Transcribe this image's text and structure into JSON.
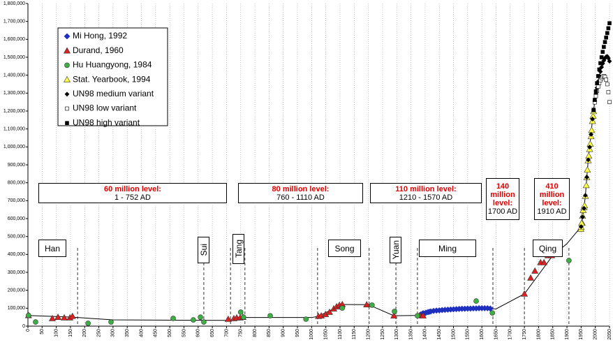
{
  "chart_data": {
    "type": "scatter",
    "xlim": [
      0,
      2050
    ],
    "xticks": [
      0,
      50,
      100,
      150,
      200,
      250,
      300,
      350,
      400,
      450,
      500,
      550,
      600,
      650,
      700,
      750,
      800,
      850,
      900,
      950,
      1000,
      1050,
      1100,
      1150,
      1200,
      1250,
      1300,
      1350,
      1400,
      1450,
      1500,
      1550,
      1600,
      1650,
      1700,
      1750,
      1800,
      1850,
      1900,
      1950,
      2000,
      2050
    ],
    "ylim": [
      0,
      1800000
    ],
    "yticks": [
      0,
      {
        "value": 100000,
        "label": "100,000"
      },
      {
        "value": 200000,
        "label": "200,000"
      },
      {
        "value": 300000,
        "label": "300,000"
      },
      {
        "value": 400000,
        "label": "400,000"
      },
      {
        "value": 500000,
        "label": "500,000"
      },
      {
        "value": 600000,
        "label": "600,000"
      },
      {
        "value": 700000,
        "label": "700,000"
      },
      {
        "value": 800000,
        "label": "800,000"
      },
      {
        "value": 900000,
        "label": "900,000"
      },
      {
        "value": 1000000,
        "label": "1,000,000"
      },
      {
        "value": 1100000,
        "label": "1,100,000"
      },
      {
        "value": 1200000,
        "label": "1,200,000"
      },
      {
        "value": 1300000,
        "label": "1,300,000"
      },
      {
        "value": 1400000,
        "label": "1,400,000"
      },
      {
        "value": 1500000,
        "label": "1,500,000"
      },
      {
        "value": 1600000,
        "label": "1,600,000"
      },
      {
        "value": 1700000,
        "label": "1,700,000"
      },
      {
        "value": 1800000,
        "label": "1,800,000"
      }
    ],
    "xgrid": true,
    "trend": {
      "color": "#000000",
      "x": [
        2,
        157,
        300,
        706,
        760,
        1000,
        1024,
        1108,
        1200,
        1290,
        1381,
        1450,
        1630,
        1650,
        1750,
        1850,
        1900,
        1950
      ],
      "values": [
        59600,
        50000,
        35000,
        32000,
        48000,
        48000,
        55000,
        121000,
        120000,
        58000,
        60000,
        88000,
        98000,
        96000,
        180000,
        394000,
        460000,
        554760
      ]
    },
    "series": [
      {
        "name": "Mi Hong, 1992",
        "color": "#1f2fbf",
        "marker": "diamond",
        "x": [
          1381,
          1385,
          1390,
          1393,
          1398,
          1403,
          1410,
          1415,
          1420,
          1430,
          1440,
          1450,
          1460,
          1470,
          1480,
          1490,
          1500,
          1510,
          1520,
          1530,
          1540,
          1550,
          1560,
          1570,
          1580,
          1590,
          1600,
          1610,
          1620,
          1630
        ],
        "values": [
          60000,
          65000,
          68000,
          72000,
          70000,
          75000,
          78000,
          80000,
          82000,
          85000,
          87000,
          88000,
          90000,
          91000,
          92000,
          93000,
          94000,
          95000,
          96000,
          97000,
          97000,
          98000,
          98000,
          99000,
          99000,
          100000,
          100000,
          100000,
          100000,
          98000
        ]
      },
      {
        "name": "Durand, 1960",
        "color": "#e02020",
        "marker": "triangle",
        "x": [
          2,
          86,
          106,
          128,
          148,
          157,
          706,
          726,
          736,
          748,
          758,
          1024,
          1034,
          1049,
          1063,
          1078,
          1088,
          1098,
          1108,
          1194,
          1290,
          1381,
          1393,
          1750,
          1772,
          1787,
          1807,
          1819,
          1833,
          1846,
          1953
        ],
        "values": [
          59600,
          43000,
          50000,
          47000,
          47000,
          55000,
          39000,
          43000,
          47000,
          47000,
          50000,
          55000,
          58000,
          66000,
          78000,
          97000,
          109000,
          117000,
          121000,
          120000,
          58000,
          60000,
          58000,
          180000,
          269000,
          308000,
          355000,
          355000,
          394000,
          394000,
          577000
        ]
      },
      {
        "name": "Hu Huangyong, 1984",
        "color": "#3cb043",
        "marker": "circle",
        "x": [
          2,
          27,
          212,
          293,
          512,
          583,
          608,
          620,
          750,
          760,
          854,
          980,
          1108,
          1213,
          1292,
          1373,
          1580,
          1637,
          1907
        ],
        "values": [
          60000,
          23000,
          16000,
          23000,
          43000,
          35000,
          50000,
          23000,
          78000,
          50000,
          58000,
          39000,
          101000,
          117000,
          82000,
          58000,
          140000,
          74000,
          366000
        ]
      },
      {
        "name": "Stat. Yearbook, 1994",
        "color": "#ffff40",
        "marker": "triangle",
        "x": [
          1949,
          1950,
          1952,
          1955,
          1957,
          1960,
          1962,
          1965,
          1968,
          1970,
          1972,
          1975,
          1977,
          1980,
          1982,
          1985,
          1987,
          1990,
          1992,
          1994
        ],
        "values": [
          541670,
          551960,
          574820,
          614650,
          646530,
          662070,
          672950,
          725380,
          785340,
          829920,
          871770,
          924200,
          949740,
          987050,
          1016540,
          1058510,
          1093000,
          1143330,
          1171710,
          1198500
        ]
      },
      {
        "name": "UN98 medium variant",
        "color": "#000000",
        "marker": "smalldiamond",
        "line": true,
        "x": [
          1950,
          1955,
          1960,
          1965,
          1970,
          1975,
          1980,
          1985,
          1990,
          1994,
          1998,
          2002,
          2006,
          2010,
          2014,
          2018,
          2022,
          2026,
          2030,
          2034,
          2038,
          2042,
          2046,
          2050
        ],
        "values": [
          554760,
          609005,
          657492,
          729191,
          830675,
          927808,
          998877,
          1070175,
          1155305,
          1205000,
          1255000,
          1295000,
          1330000,
          1365000,
          1395000,
          1420000,
          1445000,
          1465000,
          1482000,
          1495000,
          1502000,
          1505000,
          1495000,
          1478000
        ]
      },
      {
        "name": "UN98 low variant",
        "color": "#ffffff",
        "marker": "square",
        "x": [
          1994,
          1998,
          2002,
          2006,
          2010,
          2014,
          2018,
          2022,
          2026,
          2030,
          2034,
          2038,
          2042,
          2046,
          2050
        ],
        "values": [
          1203000,
          1248000,
          1283000,
          1312000,
          1336000,
          1356000,
          1372000,
          1384000,
          1392000,
          1395000,
          1390000,
          1375000,
          1350000,
          1305000,
          1250000
        ]
      },
      {
        "name": "UN98 high variant",
        "color": "#000000",
        "marker": "square",
        "x": [
          1994,
          1998,
          2002,
          2006,
          2010,
          2014,
          2018,
          2022,
          2026,
          2030,
          2034,
          2038,
          2042,
          2046,
          2050
        ],
        "values": [
          1207000,
          1262000,
          1310000,
          1355000,
          1395000,
          1432000,
          1467000,
          1500000,
          1530000,
          1558000,
          1585000,
          1610000,
          1635000,
          1662000,
          1690000
        ]
      }
    ],
    "dividers": [
      175,
      620,
      714,
      765,
      1021,
      1203,
      1297,
      1373,
      1639,
      1750,
      1907
    ],
    "levels": [
      {
        "title": "60 million level:",
        "range": "1 - 752 AD"
      },
      {
        "title": "80 million level:",
        "range": "760 - 1110 AD"
      },
      {
        "title": "110 million level:",
        "range": "1210 - 1570 AD"
      },
      {
        "title": "140 million level:",
        "range": "1700 AD"
      },
      {
        "title": "410 million level:",
        "range": "1910 AD"
      }
    ],
    "dynasties": [
      "Han",
      "Sui",
      "Tang",
      "Song",
      "Yuan",
      "Ming",
      "Qing"
    ]
  }
}
